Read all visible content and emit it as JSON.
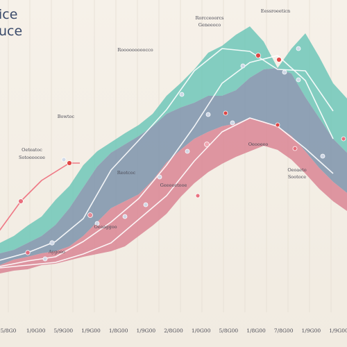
{
  "title_lines": [
    "ice",
    "uce"
  ],
  "chart_data": {
    "type": "area",
    "grid": true,
    "legend": "none",
    "x_tick_labels": [
      "5/8G0",
      "1/0G00",
      "5/9G00",
      "1/9G00",
      "1/8G00",
      "1/9G00",
      "2/8G00",
      "1/0G00",
      "5/8G00",
      "1/8G00",
      "7/8G00",
      "1/9G00",
      "1/9G00"
    ],
    "x": [
      0,
      20,
      40,
      60,
      80,
      100,
      120,
      140,
      160,
      180,
      200,
      220,
      240,
      260,
      280,
      300,
      320,
      340,
      360,
      380,
      400,
      420,
      440,
      460,
      480,
      500
    ],
    "bands": [
      {
        "color": "#6fc7b8",
        "upper": [
          150,
          160,
          175,
          188,
          212,
          232,
          262,
          282,
          295,
          308,
          320,
          336,
          362,
          380,
          400,
          424,
          434,
          450,
          462,
          440,
          402,
          430,
          452,
          418,
          380,
          358
        ]
      },
      {
        "color": "#7d93ab",
        "upper": [
          135,
          140,
          150,
          160,
          176,
          200,
          230,
          260,
          280,
          292,
          304,
          318,
          336,
          345,
          352,
          362,
          362,
          370,
          388,
          400,
          402,
          394,
          360,
          330,
          300,
          280
        ]
      },
      {
        "color": "#d98594",
        "upper": [
          118,
          126,
          130,
          135,
          138,
          145,
          160,
          180,
          200,
          210,
          220,
          240,
          266,
          284,
          300,
          310,
          318,
          322,
          330,
          325,
          318,
          304,
          282,
          258,
          238,
          222
        ]
      }
    ],
    "baseline": [
      106,
      110,
      112,
      118,
      120,
      125,
      130,
      134,
      138,
      145,
      160,
      175,
      192,
      216,
      236,
      252,
      264,
      274,
      282,
      290,
      284,
      270,
      250,
      228,
      210,
      196
    ],
    "series": [
      {
        "color": "#ffffff",
        "x": [
          0,
          40,
          80,
          120,
          160,
          200,
          240,
          280,
          320,
          360,
          400,
          440,
          480
        ],
        "y": [
          125,
          136,
          152,
          185,
          255,
          298,
          342,
          398,
          430,
          426,
          400,
          398,
          340
        ]
      },
      {
        "color": "#ffffff",
        "x": [
          0,
          40,
          80,
          120,
          160,
          200,
          240,
          280,
          320,
          360,
          400,
          440,
          480
        ],
        "y": [
          116,
          124,
          130,
          152,
          180,
          214,
          262,
          318,
          380,
          410,
          420,
          384,
          300
        ]
      },
      {
        "color": "#ffffff",
        "x": [
          0,
          40,
          80,
          120,
          160,
          200,
          240,
          280,
          320,
          360,
          400,
          440,
          480
        ],
        "y": [
          114,
          118,
          122,
          134,
          150,
          184,
          218,
          268,
          310,
          330,
          318,
          286,
          250
        ]
      },
      {
        "color": "#ee6a7a",
        "x": [
          -10,
          30,
          60,
          100,
          115
        ],
        "y": [
          155,
          210,
          240,
          265,
          265
        ]
      }
    ],
    "markers": [
      {
        "x": 30,
        "y": 210,
        "color": "#e86b7a",
        "r": 3.5
      },
      {
        "x": 100,
        "y": 265,
        "color": "#e0403f",
        "r": 3.5
      },
      {
        "x": 40,
        "y": 136,
        "color": "#e3677a",
        "r": 3.2
      },
      {
        "x": 75,
        "y": 150,
        "color": "#d1d9e8",
        "r": 3.2
      },
      {
        "x": 65,
        "y": 127,
        "color": "#d1d9e8",
        "r": 3
      },
      {
        "x": 130,
        "y": 190,
        "color": "#e88a96",
        "r": 3.5
      },
      {
        "x": 140,
        "y": 178,
        "color": "#d1d9e8",
        "r": 3
      },
      {
        "x": 180,
        "y": 188,
        "color": "#d1d9e8",
        "r": 3
      },
      {
        "x": 210,
        "y": 205,
        "color": "#d1d9e8",
        "r": 3
      },
      {
        "x": 230,
        "y": 245,
        "color": "#d1d9e8",
        "r": 3
      },
      {
        "x": 270,
        "y": 282,
        "color": "#d1d9e8",
        "r": 3
      },
      {
        "x": 285,
        "y": 218,
        "color": "#e86b7a",
        "r": 3
      },
      {
        "x": 298,
        "y": 292,
        "color": "#f1a9b4",
        "r": 3.5
      },
      {
        "x": 300,
        "y": 335,
        "color": "#d1d9e8",
        "r": 3
      },
      {
        "x": 262,
        "y": 364,
        "color": "#d1d9e8",
        "r": 3
      },
      {
        "x": 325,
        "y": 337,
        "color": "#e0403f",
        "r": 3
      },
      {
        "x": 335,
        "y": 323,
        "color": "#d1d9e8",
        "r": 3
      },
      {
        "x": 350,
        "y": 405,
        "color": "#d1d9e8",
        "r": 3
      },
      {
        "x": 372,
        "y": 420,
        "color": "#e0403f",
        "r": 3.5
      },
      {
        "x": 402,
        "y": 414,
        "color": "#e0403f",
        "r": 3.5
      },
      {
        "x": 410,
        "y": 396,
        "color": "#d1d9e8",
        "r": 3
      },
      {
        "x": 400,
        "y": 320,
        "color": "#e0403f",
        "r": 3
      },
      {
        "x": 425,
        "y": 286,
        "color": "#e86b7a",
        "r": 3
      },
      {
        "x": 430,
        "y": 385,
        "color": "#d1d9e8",
        "r": 3
      },
      {
        "x": 430,
        "y": 430,
        "color": "#d1d9e8",
        "r": 3
      },
      {
        "x": 465,
        "y": 275,
        "color": "#d1d9e8",
        "r": 3
      },
      {
        "x": 495,
        "y": 300,
        "color": "#e86b7a",
        "r": 3
      },
      {
        "x": 92,
        "y": 270,
        "color": "#d1d9e8",
        "r": 3
      }
    ],
    "annotations": [
      [
        "Rorcceoorcs",
        "Geneeoco"
      ],
      [
        "Eessroeeticn"
      ],
      [
        "Rooooooooocco"
      ],
      [
        "Bowtoc"
      ],
      [
        "Oeteatoc",
        "Sotoeoocee"
      ],
      [
        "Oeooeeo"
      ],
      [
        "Geeeeetooe"
      ],
      [
        "Oeoaggoo"
      ],
      [
        "Reotcoc"
      ],
      [
        "Oeoaeto",
        "Sootoce"
      ],
      [
        "Aygoeo"
      ]
    ]
  }
}
